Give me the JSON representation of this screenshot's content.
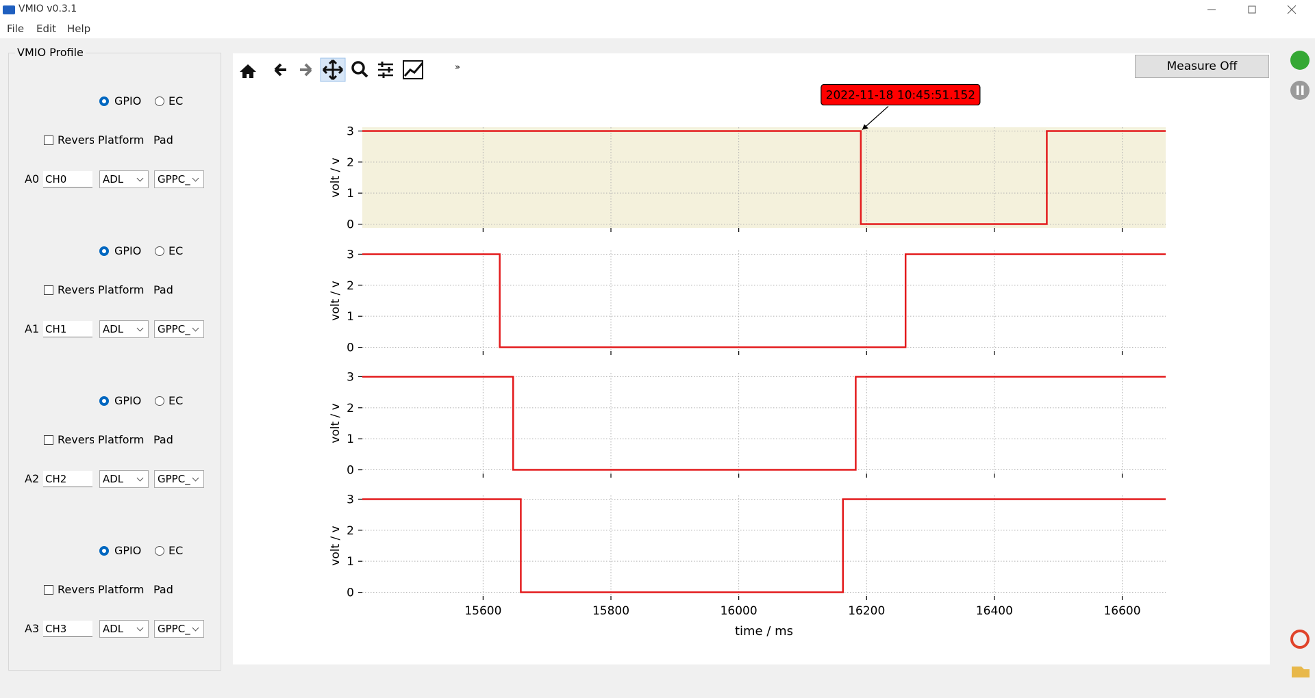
{
  "window": {
    "title": "VMIO v0.3.1",
    "menu": [
      "File",
      "Edit",
      "Help"
    ]
  },
  "profile": {
    "title": "VMIO Profile",
    "channels": [
      {
        "label": "A0",
        "gpio": "GPIO",
        "ec": "EC",
        "reverse": "Revers",
        "platform_label": "Platform",
        "pad_label": "Pad",
        "name": "CH0",
        "platform": "ADL",
        "pad": "GPPC_"
      },
      {
        "label": "A1",
        "gpio": "GPIO",
        "ec": "EC",
        "reverse": "Revers",
        "platform_label": "Platform",
        "pad_label": "Pad",
        "name": "CH1",
        "platform": "ADL",
        "pad": "GPPC_"
      },
      {
        "label": "A2",
        "gpio": "GPIO",
        "ec": "EC",
        "reverse": "Revers",
        "platform_label": "Platform",
        "pad_label": "Pad",
        "name": "CH2",
        "platform": "ADL",
        "pad": "GPPC_"
      },
      {
        "label": "A3",
        "gpio": "GPIO",
        "ec": "EC",
        "reverse": "Revers",
        "platform_label": "Platform",
        "pad_label": "Pad",
        "name": "CH3",
        "platform": "ADL",
        "pad": "GPPC_"
      }
    ]
  },
  "toolbar": {
    "more": "»",
    "measure": "Measure Off"
  },
  "chart_data": [
    {
      "type": "line",
      "ylabel": "volt / v",
      "x": [
        15411,
        16191,
        16191,
        16482,
        16482,
        16668
      ],
      "values": [
        3,
        3,
        0,
        0,
        3,
        3
      ],
      "color": "#e31a1c",
      "xlim": [
        15411,
        16668
      ],
      "ylim": [
        -0.12,
        3.12
      ],
      "yticks": [
        0,
        1,
        2,
        3
      ],
      "grid": true,
      "facecolor": "#f4f1dc",
      "annotation": {
        "text": "2022-11-18 10:45:51.152",
        "x": 16191,
        "y": 3
      }
    },
    {
      "type": "line",
      "ylabel": "volt / v",
      "x": [
        15411,
        15626,
        15626,
        16261,
        16261,
        16668
      ],
      "values": [
        3,
        3,
        0,
        0,
        3,
        3
      ],
      "color": "#e31a1c",
      "xlim": [
        15411,
        16668
      ],
      "ylim": [
        -0.12,
        3.12
      ],
      "yticks": [
        0,
        1,
        2,
        3
      ],
      "grid": true
    },
    {
      "type": "line",
      "ylabel": "volt / v",
      "x": [
        15411,
        15647,
        15647,
        16183,
        16183,
        16668
      ],
      "values": [
        3,
        3,
        0,
        0,
        3,
        3
      ],
      "color": "#e31a1c",
      "xlim": [
        15411,
        16668
      ],
      "ylim": [
        -0.12,
        3.12
      ],
      "yticks": [
        0,
        1,
        2,
        3
      ],
      "grid": true
    },
    {
      "type": "line",
      "ylabel": "volt / v",
      "xlabel": "time / ms",
      "x": [
        15411,
        15659,
        15659,
        16163,
        16163,
        16668
      ],
      "values": [
        3,
        3,
        0,
        0,
        3,
        3
      ],
      "color": "#e31a1c",
      "xlim": [
        15411,
        16668
      ],
      "ylim": [
        -0.12,
        3.12
      ],
      "yticks": [
        0,
        1,
        2,
        3
      ],
      "xticks": [
        15600,
        15800,
        16000,
        16200,
        16400,
        16600
      ],
      "grid": true
    }
  ]
}
